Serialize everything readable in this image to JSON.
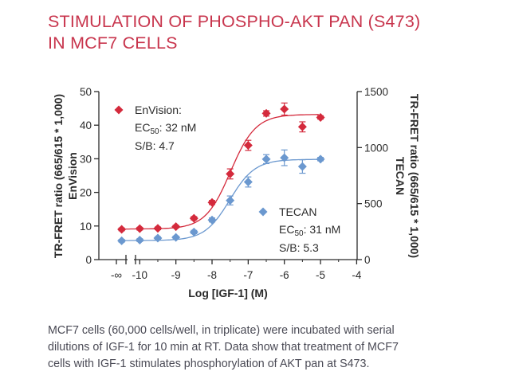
{
  "title_lines": [
    "STIMULATION OF PHOSPHO-AKT PAN (S473)",
    "IN MCF7 CELLS"
  ],
  "caption_lines": [
    "MCF7 cells (60,000 cells/well, in triplicate) were incubated with serial",
    "dilutions of IGF-1 for 10 min at RT. Data show that treatment of MCF7",
    "cells with IGF-1 stimulates phosphorylation of AKT pan at S473."
  ],
  "colors": {
    "envision": "#d42a3c",
    "tecan": "#6b98cf",
    "axis": "#2b2b2b",
    "title": "#c8354d",
    "caption": "#4a4a55"
  },
  "chart_data": {
    "type": "scatter",
    "xlabel": "Log [IGF-1] (M)",
    "ylabel_left": [
      "TR-FRET ratio (665/615 * 1,000)",
      "EnVision"
    ],
    "ylabel_right": [
      "TR-FRET ratio (665/615 * 1,000)",
      "TECAN"
    ],
    "x_tick_labels": [
      "-∞",
      "-10",
      "-9",
      "-8",
      "-7",
      "-6",
      "-5",
      "-4"
    ],
    "x_ticks": [
      -10,
      -9,
      -8,
      -7,
      -6,
      -5,
      -4
    ],
    "xlim": [
      -11.05,
      -4
    ],
    "y_left_ticks": [
      0,
      10,
      20,
      30,
      40,
      50
    ],
    "y_left_lim": [
      0,
      50
    ],
    "y_right_ticks": [
      0,
      500,
      1000,
      1500
    ],
    "y_right_lim": [
      0,
      1500
    ],
    "series": [
      {
        "key": "envision",
        "marker": "diamond",
        "axis": "left",
        "legend": "EnVision:",
        "ec50_label": "EC",
        "ec50_sub": "50",
        "ec50_value": ": 32 nM",
        "sb": "S/B: 4.7",
        "points": [
          {
            "x": -10.5,
            "y": 9.0,
            "err": 0.4
          },
          {
            "x": -10.0,
            "y": 9.2,
            "err": 0.4
          },
          {
            "x": -9.5,
            "y": 9.3,
            "err": 0.4
          },
          {
            "x": -9.0,
            "y": 9.8,
            "err": 0.4
          },
          {
            "x": -8.5,
            "y": 12.3,
            "err": 0.5
          },
          {
            "x": -8.0,
            "y": 17.0,
            "err": 0.6
          },
          {
            "x": -7.5,
            "y": 25.5,
            "err": 1.5
          },
          {
            "x": -7.0,
            "y": 34.0,
            "err": 1.5
          },
          {
            "x": -6.5,
            "y": 43.5,
            "err": 0.8
          },
          {
            "x": -6.0,
            "y": 44.8,
            "err": 1.8
          },
          {
            "x": -5.5,
            "y": 39.5,
            "err": 1.5
          },
          {
            "x": -5.0,
            "y": 42.3,
            "err": 0.5
          }
        ],
        "fit": {
          "bottom": 9.1,
          "top": 43.2,
          "log_ec50": -7.49,
          "hill": 1.25
        }
      },
      {
        "key": "tecan",
        "marker": "diamond",
        "axis": "right",
        "legend": "TECAN",
        "ec50_label": "EC",
        "ec50_sub": "50",
        "ec50_value": ": 31 nM",
        "sb": "S/B: 5.3",
        "points": [
          {
            "x": -10.5,
            "y": 168,
            "err": 12
          },
          {
            "x": -10.0,
            "y": 174,
            "err": 12
          },
          {
            "x": -9.5,
            "y": 192,
            "err": 12
          },
          {
            "x": -9.0,
            "y": 198,
            "err": 12
          },
          {
            "x": -8.5,
            "y": 246,
            "err": 15
          },
          {
            "x": -8.0,
            "y": 354,
            "err": 18
          },
          {
            "x": -7.5,
            "y": 528,
            "err": 40
          },
          {
            "x": -7.0,
            "y": 693,
            "err": 45
          },
          {
            "x": -6.5,
            "y": 897,
            "err": 40
          },
          {
            "x": -6.0,
            "y": 909,
            "err": 70
          },
          {
            "x": -5.5,
            "y": 831,
            "err": 60
          },
          {
            "x": -5.0,
            "y": 897,
            "err": 15
          }
        ],
        "fit": {
          "bottom": 170,
          "top": 895,
          "log_ec50": -7.51,
          "hill": 1.25
        }
      }
    ]
  }
}
